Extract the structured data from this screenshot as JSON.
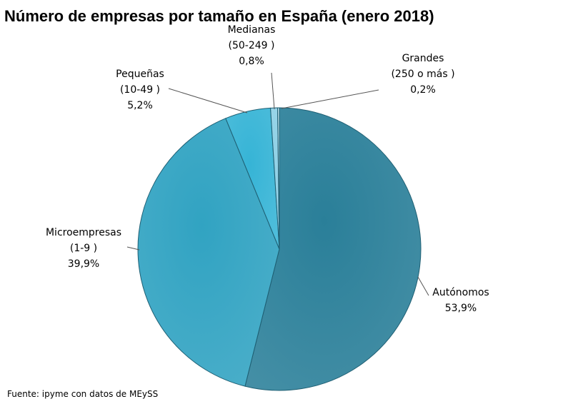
{
  "chart_data": {
    "type": "pie",
    "title": "Número de empresas por tamaño en España (enero 2018)",
    "source": "Fuente: ipyme con datos de MEySS",
    "slices": [
      {
        "name": "Autónomos",
        "label_lines": [
          "Autónomos"
        ],
        "pct_label": "53,9%",
        "value": 53.9,
        "color": "#2a7f99"
      },
      {
        "name": "Microempresas (1-9 )",
        "label_lines": [
          "Microempresas",
          "(1-9 )"
        ],
        "pct_label": "39,9%",
        "value": 39.9,
        "color": "#31a3c2"
      },
      {
        "name": "Pequeñas (10-49 )",
        "label_lines": [
          "Pequeñas",
          "(10-49 )"
        ],
        "pct_label": "5,2%",
        "value": 5.2,
        "color": "#36b4d6"
      },
      {
        "name": "Medianas (50-249 )",
        "label_lines": [
          "Medianas",
          "(50-249 )"
        ],
        "pct_label": "0,8%",
        "value": 0.8,
        "color": "#8fd0e6"
      },
      {
        "name": "Grandes (250 o más )",
        "label_lines": [
          "Grandes",
          "(250 o más )"
        ],
        "pct_label": "0,2%",
        "value": 0.2,
        "color": "#bfe4f0"
      }
    ]
  }
}
